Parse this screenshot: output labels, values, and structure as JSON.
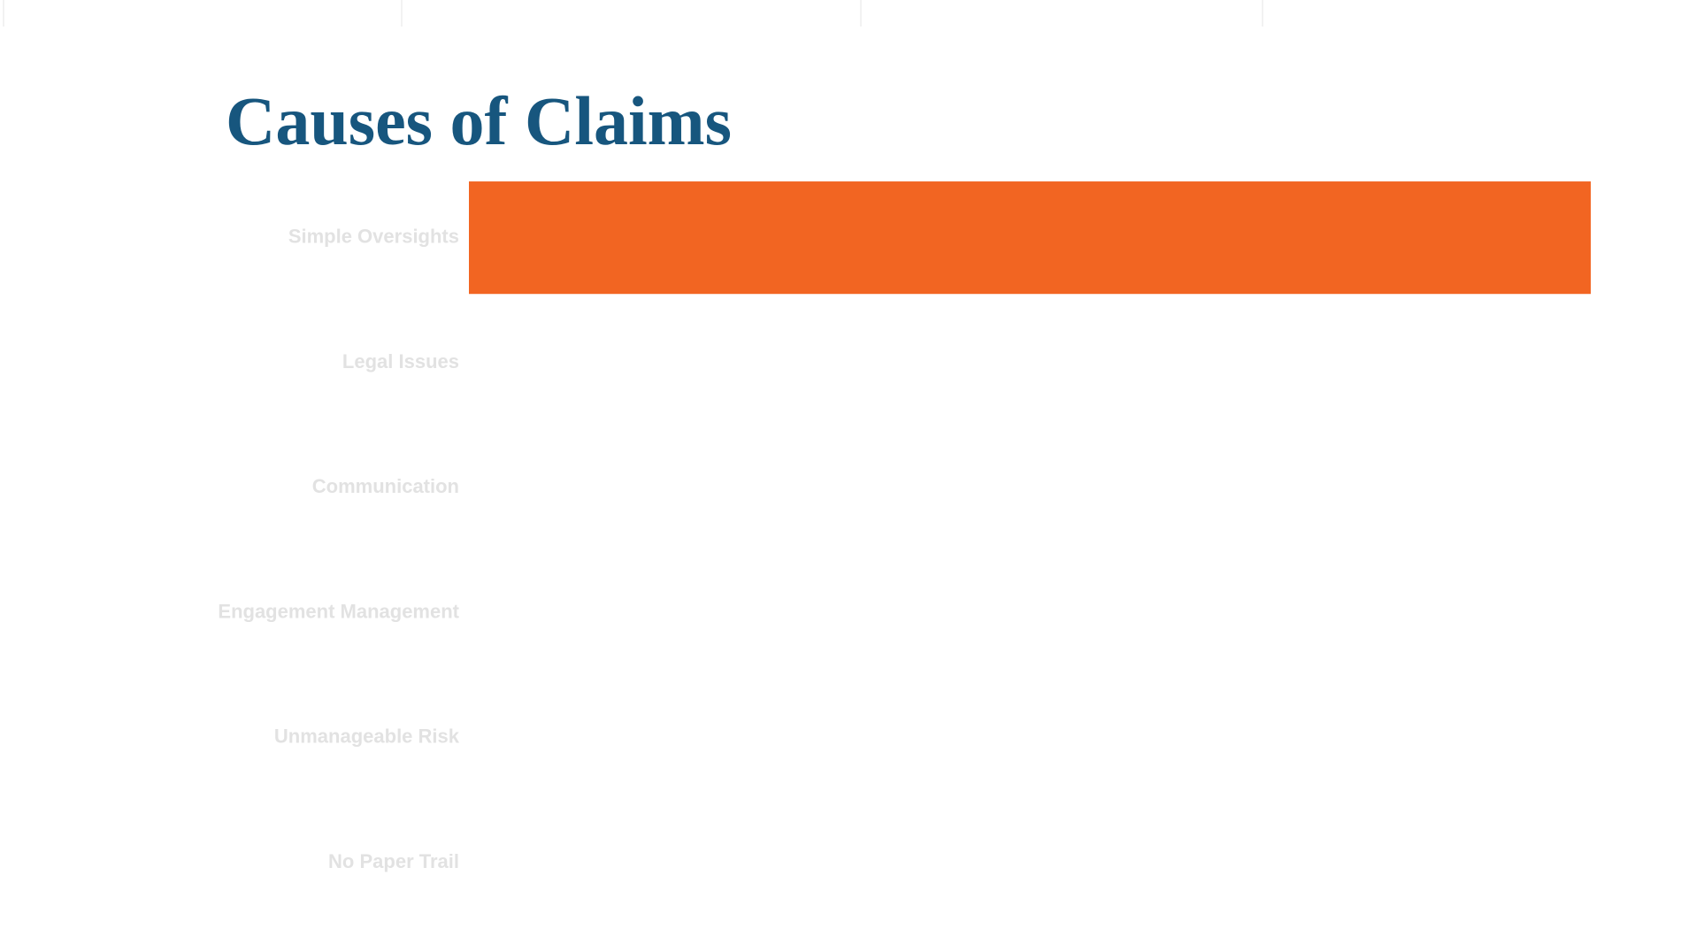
{
  "chart_data": {
    "type": "bar",
    "orientation": "horizontal",
    "title": "Causes of Claims",
    "categories": [
      "Simple Oversights",
      "Legal Issues",
      "Communication",
      "Engagement Management",
      "Unmanageable Risk",
      "No Paper Trail"
    ],
    "values": [
      100,
      0,
      0,
      0,
      0,
      0
    ],
    "color": "#f26522",
    "xlim": [
      0,
      100
    ],
    "grid": false
  }
}
